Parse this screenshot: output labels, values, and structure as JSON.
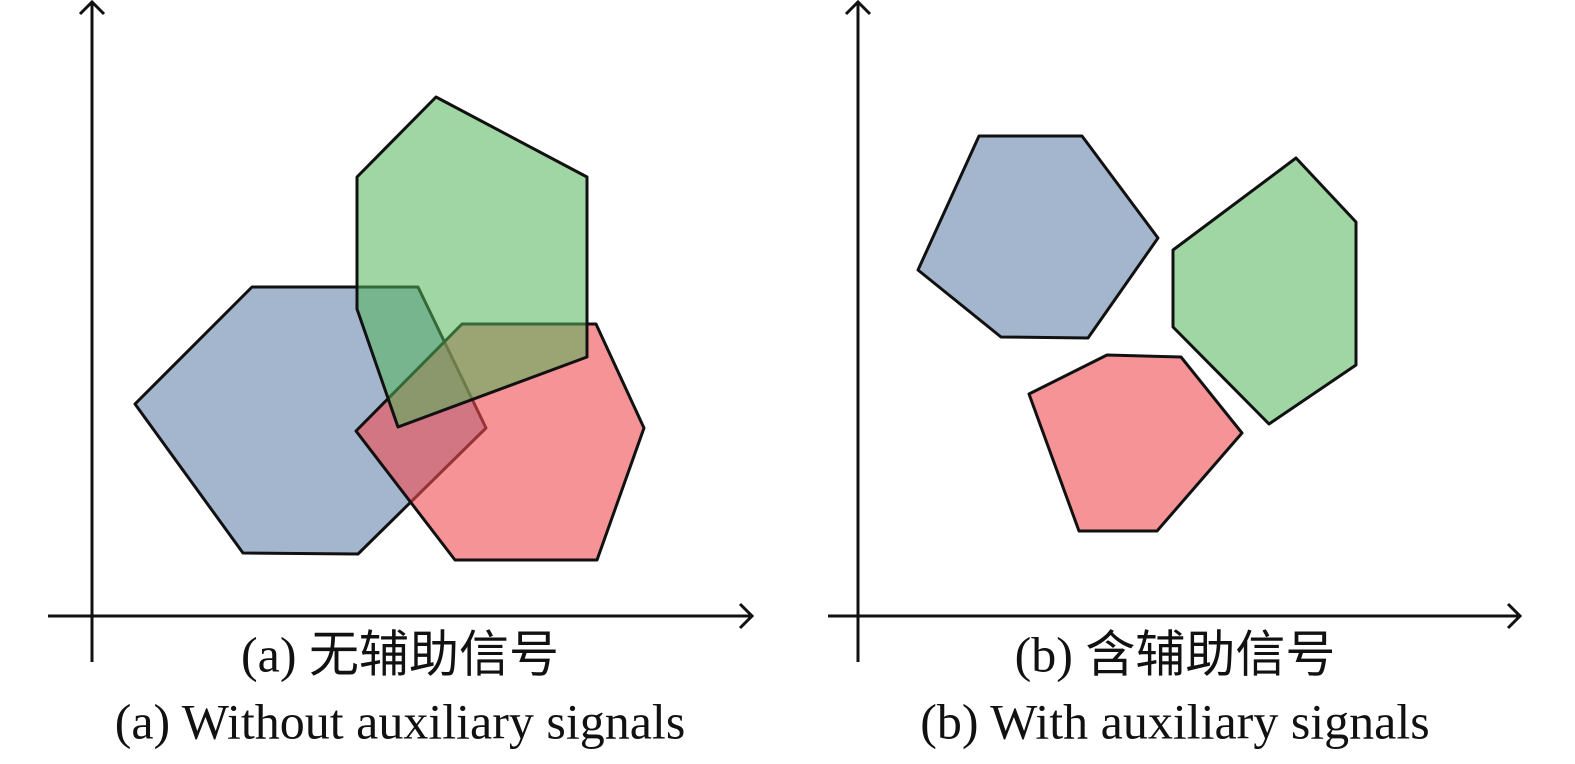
{
  "panels": [
    {
      "caption_zh": "(a) 无辅助信号",
      "caption_en": "(a) Without auxiliary signals"
    },
    {
      "caption_zh": "(b) 含辅助信号",
      "caption_en": "(b) With auxiliary signals"
    }
  ]
}
